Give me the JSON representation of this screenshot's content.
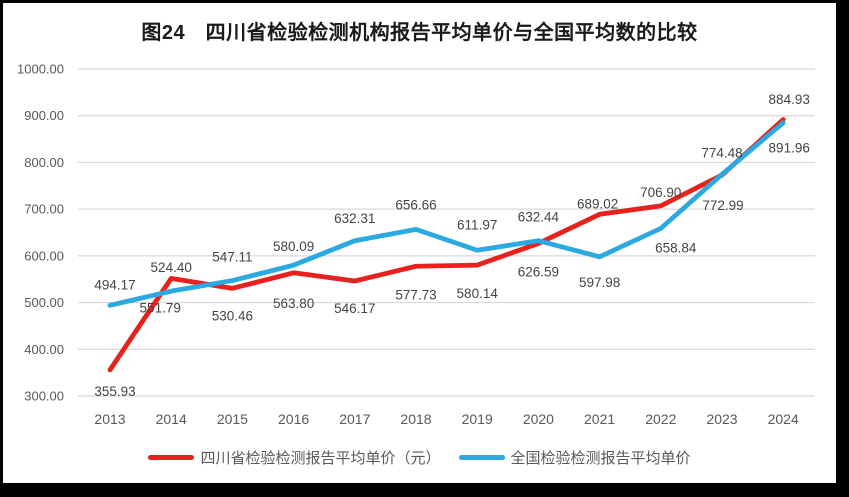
{
  "frame": {
    "border_color": "#000000",
    "card_background": "#ffffff"
  },
  "chart_data": {
    "type": "line",
    "title": "图24　四川省检验检测机构报告平均单价与全国平均数的比较",
    "categories": [
      "2013",
      "2014",
      "2015",
      "2016",
      "2017",
      "2018",
      "2019",
      "2020",
      "2021",
      "2022",
      "2023",
      "2024"
    ],
    "series": [
      {
        "name": "四川省检验检测报告平均单价（元）",
        "color": "#E8211D",
        "values": [
          355.93,
          551.79,
          530.46,
          563.8,
          546.17,
          577.73,
          580.14,
          626.59,
          689.02,
          706.9,
          772.99,
          891.96
        ],
        "label_offsets": [
          [
            5,
            26
          ],
          [
            -11,
            34
          ],
          [
            0,
            32
          ],
          [
            0,
            35
          ],
          [
            0,
            32
          ],
          [
            0,
            33
          ],
          [
            0,
            33
          ],
          [
            0,
            33
          ],
          [
            -2,
            -6
          ],
          [
            0,
            -9
          ],
          [
            1,
            35
          ],
          [
            6,
            33
          ]
        ]
      },
      {
        "name": "全国检验检测报告平均单价",
        "color": "#2BA9E0",
        "values": [
          494.17,
          524.4,
          547.11,
          580.09,
          632.31,
          656.66,
          611.97,
          632.44,
          597.98,
          658.84,
          774.48,
          884.93
        ],
        "label_offsets": [
          [
            5,
            -16
          ],
          [
            0,
            -19
          ],
          [
            0,
            -19
          ],
          [
            0,
            -14
          ],
          [
            0,
            -18
          ],
          [
            0,
            -20
          ],
          [
            0,
            -21
          ],
          [
            0,
            -19
          ],
          [
            0,
            30
          ],
          [
            15,
            24
          ],
          [
            0,
            -17
          ],
          [
            6,
            -19
          ]
        ]
      }
    ],
    "ylim": [
      300,
      1000
    ],
    "ytick_step": 100,
    "value_decimals": 2,
    "grid": true,
    "legend_position": "bottom",
    "colors": {
      "gridline": "#D9D9D9",
      "axis_text": "#595959",
      "data_label": "#444444",
      "title_text": "#1A1A1A"
    }
  }
}
